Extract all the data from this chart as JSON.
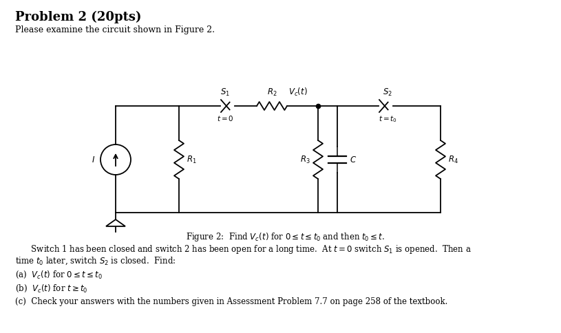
{
  "title": "Problem 2 (20pts)",
  "subtitle": "Please examine the circuit shown in Figure 2.",
  "figure_caption": "Figure 2:  Find $V_c(t)$ for $0 \\leq t \\leq t_0$ and then $t_0 \\leq t$.",
  "body_text_line1": "    Switch 1 has been closed and switch 2 has been open for a long time.  At $t = 0$ switch $S_1$ is opened.  Then a",
  "body_text_line2": "time $t_0$ later, switch $S_2$ is closed.  Find:",
  "item_a": "(a)  $V_c(t)$ for $0 \\leq t \\leq t_0$",
  "item_b": "(b)  $V_c(t)$ for $t \\geq t_0$",
  "item_c": "(c)  Check your answers with the numbers given in Assessment Problem 7.7 on page 258 of the textbook.",
  "bg_color": "#ffffff",
  "text_color": "#000000",
  "circuit_color": "#000000"
}
